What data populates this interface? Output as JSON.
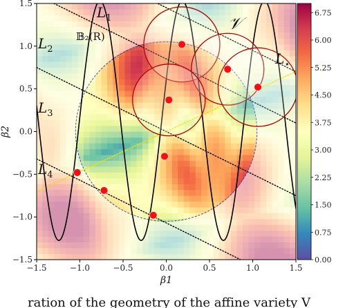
{
  "chart_data": {
    "type": "heatmap",
    "title": "",
    "xlabel": "β1",
    "ylabel": "β2",
    "xlim": [
      -1.5,
      1.5
    ],
    "ylim": [
      -1.5,
      1.5
    ],
    "x_ticks": [
      "−1.5",
      "−1.0",
      "−0.5",
      "0.0",
      "0.5",
      "1.0",
      "1.5"
    ],
    "y_ticks": [
      "−1.5",
      "−1.0",
      "−0.5",
      "0.0",
      "0.5",
      "1.0",
      "1.5"
    ],
    "colorbar": {
      "min": 0.0,
      "max": 7.0,
      "ticks": [
        "0.00",
        "0.75",
        "1.50",
        "2.25",
        "3.00",
        "3.75",
        "4.50",
        "5.25",
        "6.00",
        "6.75"
      ],
      "colormap": [
        "#5e4fa2",
        "#3288bd",
        "#66c2a5",
        "#abdda4",
        "#e6f598",
        "#ffffbf",
        "#fee08b",
        "#fdae61",
        "#f46d43",
        "#d53e4f",
        "#9e0142"
      ]
    },
    "ball": {
      "label": "𝔹₂(R)",
      "center": [
        0,
        0
      ],
      "radius": 1.05
    },
    "curve_label": "𝒱",
    "lines": [
      {
        "name": "L1",
        "label": "L",
        "subscript": "1",
        "intercept": 1.45,
        "slope": -0.5
      },
      {
        "name": "L2",
        "label": "L",
        "subscript": "2",
        "intercept": 0.85,
        "slope": -0.5
      },
      {
        "name": "L3",
        "label": "L",
        "subscript": "3",
        "intercept": 0.0,
        "slope": -0.5
      },
      {
        "name": "L4",
        "label": "L",
        "subscript": "4",
        "intercept": -1.07,
        "slope": -0.5
      }
    ],
    "l_star": {
      "label": "L",
      "subscript": "⋆",
      "slope": 0.4682,
      "intercept": 0.0
    },
    "points": [
      {
        "x": 0.18,
        "y": 1.02
      },
      {
        "x": 0.71,
        "y": 0.73
      },
      {
        "x": 1.06,
        "y": 0.52
      },
      {
        "x": 0.03,
        "y": 0.37
      },
      {
        "x": -0.02,
        "y": -0.29
      },
      {
        "x": -1.03,
        "y": -0.48
      },
      {
        "x": -0.72,
        "y": -0.69
      },
      {
        "x": -0.15,
        "y": -0.98
      }
    ],
    "circles": [
      {
        "x": 0.18,
        "y": 1.02,
        "r": 0.44
      },
      {
        "x": 0.71,
        "y": 0.73,
        "r": 0.42
      },
      {
        "x": 1.06,
        "y": 0.52,
        "r": 0.46
      },
      {
        "x": 0.03,
        "y": 0.37,
        "r": 0.42
      }
    ],
    "caption": "ration of the geometry of the affine variety V"
  }
}
